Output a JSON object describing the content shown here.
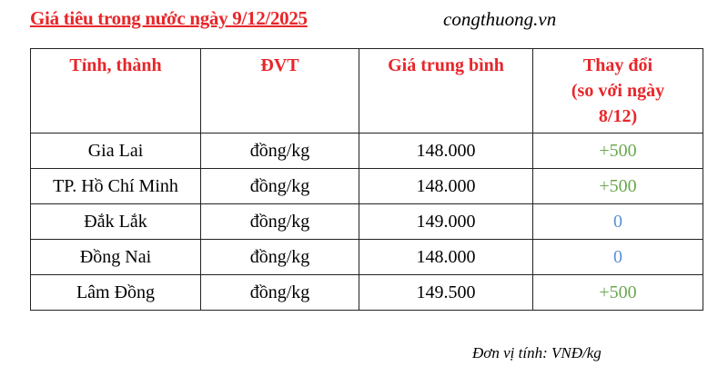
{
  "title": "Giá tiêu trong nước ngày 9/12/2025",
  "site": "congthuong.vn",
  "table": {
    "headers": [
      "Tỉnh, thành",
      "ĐVT",
      "Giá trung bình",
      "Thay đổi (so với ngày 8/12)"
    ],
    "header_change_line1": "Thay đổi",
    "header_change_line2": "(so với ngày",
    "header_change_line3": "8/12)",
    "rows": [
      {
        "province": "Gia Lai",
        "unit": "đồng/kg",
        "price": "148.000",
        "change": "+500"
      },
      {
        "province": "TP. Hồ Chí Minh",
        "unit": "đồng/kg",
        "price": "148.000",
        "change": "+500"
      },
      {
        "province": "Đắk Lắk",
        "unit": "đồng/kg",
        "price": "149.000",
        "change": "0"
      },
      {
        "province": "Đồng Nai",
        "unit": "đồng/kg",
        "price": "148.000",
        "change": "0"
      },
      {
        "province": "Lâm Đồng",
        "unit": "đồng/kg",
        "price": "149.500",
        "change": "+500"
      }
    ]
  },
  "footer": "Đơn vị tính: VNĐ/kg",
  "colors": {
    "header": "#e8262a",
    "increase": "#6aa84f",
    "unchanged": "#5b8fd6"
  }
}
